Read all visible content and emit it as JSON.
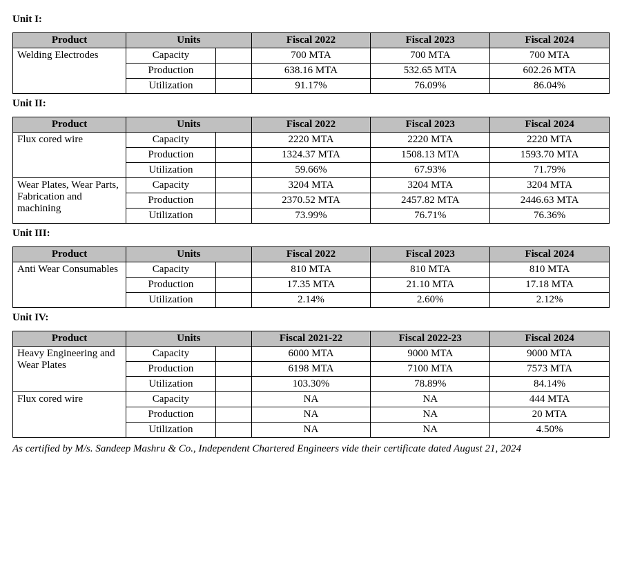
{
  "columnHeaders": {
    "product": "Product",
    "units": "Units"
  },
  "footnote": "As certified by M/s. Sandeep Mashru & Co., Independent Chartered Engineers vide their certificate dated August 21, 2024",
  "units": [
    {
      "title": "Unit I:",
      "fiscalHeaders": [
        "Fiscal 2022",
        "Fiscal 2023",
        "Fiscal 2024"
      ],
      "products": [
        {
          "name": "Welding Electrodes",
          "rows": [
            {
              "unit": "Capacity",
              "values": [
                "700 MTA",
                "700 MTA",
                "700 MTA"
              ]
            },
            {
              "unit": "Production",
              "values": [
                "638.16 MTA",
                "532.65 MTA",
                "602.26 MTA"
              ]
            },
            {
              "unit": "Utilization",
              "values": [
                "91.17%",
                "76.09%",
                "86.04%"
              ]
            }
          ]
        }
      ]
    },
    {
      "title": "Unit II:",
      "fiscalHeaders": [
        "Fiscal 2022",
        "Fiscal 2023",
        "Fiscal 2024"
      ],
      "products": [
        {
          "name": "Flux cored wire",
          "rows": [
            {
              "unit": "Capacity",
              "values": [
                "2220 MTA",
                "2220 MTA",
                "2220 MTA"
              ]
            },
            {
              "unit": "Production",
              "values": [
                "1324.37 MTA",
                "1508.13 MTA",
                "1593.70 MTA"
              ]
            },
            {
              "unit": "Utilization",
              "values": [
                "59.66%",
                "67.93%",
                "71.79%"
              ]
            }
          ]
        },
        {
          "name": "Wear Plates, Wear Parts, Fabrication and machining",
          "rows": [
            {
              "unit": "Capacity",
              "values": [
                "3204 MTA",
                "3204 MTA",
                "3204 MTA"
              ]
            },
            {
              "unit": "Production",
              "values": [
                "2370.52 MTA",
                "2457.82 MTA",
                "2446.63 MTA"
              ]
            },
            {
              "unit": "Utilization",
              "values": [
                "73.99%",
                "76.71%",
                "76.36%"
              ]
            }
          ]
        }
      ]
    },
    {
      "title": "Unit III:",
      "fiscalHeaders": [
        "Fiscal 2022",
        "Fiscal 2023",
        "Fiscal 2024"
      ],
      "products": [
        {
          "name": "Anti Wear Consumables",
          "rows": [
            {
              "unit": "Capacity",
              "values": [
                "810 MTA",
                "810 MTA",
                "810 MTA"
              ]
            },
            {
              "unit": "Production",
              "values": [
                "17.35 MTA",
                "21.10 MTA",
                "17.18 MTA"
              ]
            },
            {
              "unit": "Utilization",
              "values": [
                "2.14%",
                "2.60%",
                "2.12%"
              ]
            }
          ]
        }
      ]
    },
    {
      "title": "Unit IV:",
      "fiscalHeaders": [
        "Fiscal 2021-22",
        "Fiscal 2022-23",
        "Fiscal 2024"
      ],
      "products": [
        {
          "name": "Heavy Engineering and Wear Plates",
          "rows": [
            {
              "unit": "Capacity",
              "values": [
                "6000 MTA",
                "9000 MTA",
                "9000 MTA"
              ]
            },
            {
              "unit": "Production",
              "values": [
                "6198 MTA",
                "7100 MTA",
                "7573 MTA"
              ]
            },
            {
              "unit": "Utilization",
              "values": [
                "103.30%",
                "78.89%",
                "84.14%"
              ]
            }
          ]
        },
        {
          "name": "Flux cored wire",
          "nonJustify": true,
          "rows": [
            {
              "unit": "Capacity",
              "values": [
                "NA",
                "NA",
                "444 MTA"
              ]
            },
            {
              "unit": "Production",
              "values": [
                "NA",
                "NA",
                "20 MTA"
              ]
            },
            {
              "unit": "Utilization",
              "values": [
                "NA",
                "NA",
                "4.50%"
              ]
            }
          ]
        }
      ]
    }
  ]
}
